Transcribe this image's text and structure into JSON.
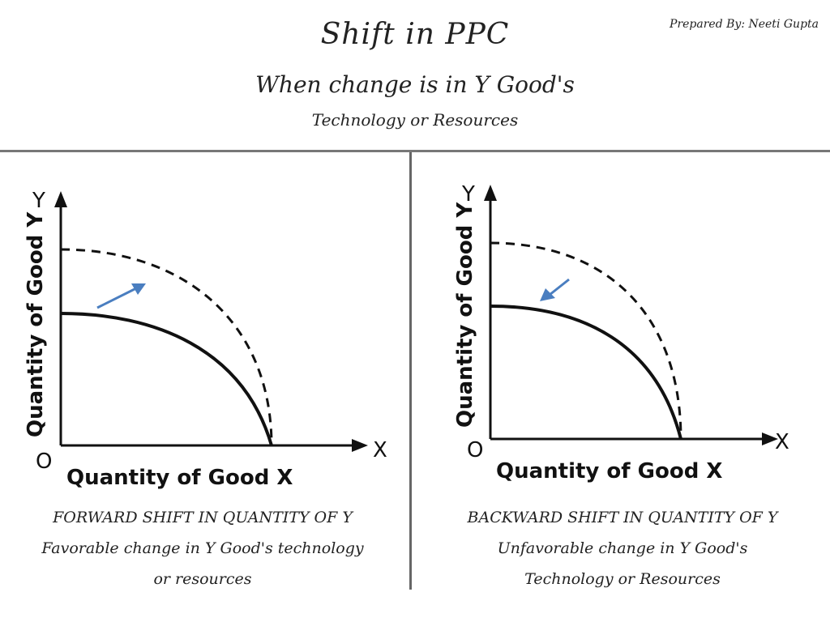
{
  "header": {
    "title": "Shift in PPC",
    "subtitle": "When change is in Y Good's",
    "subtitle2": "Technology or Resources",
    "credit": "Prepared By:   Neeti Gupta"
  },
  "left_panel": {
    "y_letter": "Y",
    "x_letter": "X",
    "origin": "O",
    "y_label": "Quantity of Good Y",
    "x_label": "Quantity of Good X",
    "caption_line1": "FORWARD SHIFT IN QUANTITY OF Y",
    "caption_line2": "Favorable change in Y Good's technology",
    "caption_line3": "or resources"
  },
  "right_panel": {
    "y_letter": "Y",
    "x_letter": "X",
    "origin": "O",
    "y_label": "Quantity of Good Y",
    "x_label": "Quantity of Good X",
    "caption_line1": "BACKWARD SHIFT IN QUANTITY OF Y",
    "caption_line2": "Unfavorable change in Y Good's",
    "caption_line3": "Technology or Resources"
  },
  "colors": {
    "arrow": "#4a7ec0",
    "curve": "#111111"
  }
}
